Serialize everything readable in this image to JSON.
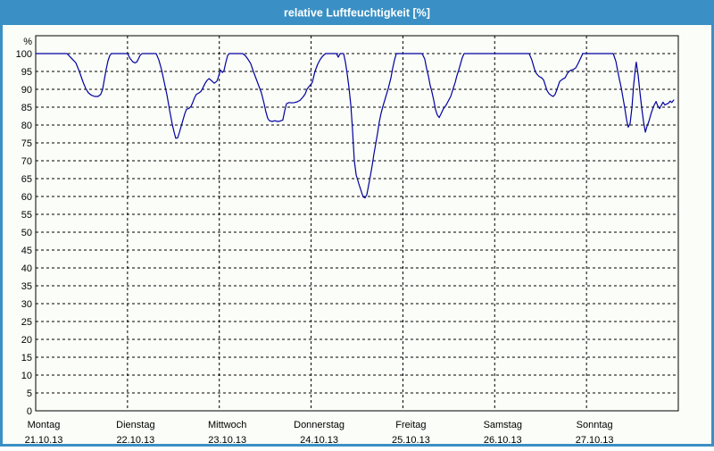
{
  "window": {
    "title": "relative Luftfeuchtigkeit [%]"
  },
  "colors": {
    "title_bar": "#3a90c4",
    "frame_border": "#3a90c4",
    "title_text": "#ffffff",
    "window_bg": "#fbfdf8",
    "grid_line": "#000000",
    "axis_text": "#000000",
    "series_line": "#0000a0"
  },
  "chart_data": {
    "type": "line",
    "title": "relative Luftfeuchtigkeit [%]",
    "ylabel": "%",
    "ylim": [
      0,
      105
    ],
    "grid": "dashed",
    "y_ticks": [
      0,
      5,
      10,
      15,
      20,
      25,
      30,
      35,
      40,
      45,
      50,
      55,
      60,
      65,
      70,
      75,
      80,
      85,
      90,
      95,
      100
    ],
    "x_axis": {
      "unit": "hours",
      "range_hours": [
        0,
        168
      ],
      "day_tick_hours": [
        0,
        24,
        48,
        72,
        96,
        120,
        144
      ],
      "day_labels": [
        {
          "name": "Montag",
          "date": "21.10.13"
        },
        {
          "name": "Dienstag",
          "date": "22.10.13"
        },
        {
          "name": "Mittwoch",
          "date": "23.10.13"
        },
        {
          "name": "Donnerstag",
          "date": "24.10.13"
        },
        {
          "name": "Freitag",
          "date": "25.10.13"
        },
        {
          "name": "Samstag",
          "date": "26.10.13"
        },
        {
          "name": "Sonntag",
          "date": "27.10.13"
        }
      ]
    },
    "series": [
      {
        "name": "relative Luftfeuchtigkeit",
        "color": "#0000a0",
        "points": [
          [
            0,
            100
          ],
          [
            8.2,
            100
          ],
          [
            8.9,
            99.2
          ],
          [
            9.8,
            98.2
          ],
          [
            10.5,
            97.4
          ],
          [
            11.4,
            95
          ],
          [
            12.4,
            92
          ],
          [
            13.1,
            90.2
          ],
          [
            13.8,
            89
          ],
          [
            14.5,
            88.4
          ],
          [
            15.4,
            88
          ],
          [
            16.3,
            88
          ],
          [
            17,
            88.6
          ],
          [
            17.5,
            90
          ],
          [
            18,
            93
          ],
          [
            18.4,
            95.5
          ],
          [
            18.9,
            98
          ],
          [
            19.4,
            99.5
          ],
          [
            19.8,
            100
          ],
          [
            24,
            100
          ],
          [
            24.7,
            98.6
          ],
          [
            25.4,
            97.7
          ],
          [
            25.9,
            97.4
          ],
          [
            26.4,
            97.6
          ],
          [
            26.8,
            98.4
          ],
          [
            27.3,
            99.5
          ],
          [
            27.8,
            100
          ],
          [
            31.5,
            100
          ],
          [
            32.2,
            98.2
          ],
          [
            32.9,
            95.5
          ],
          [
            33.6,
            92
          ],
          [
            34.3,
            88.5
          ],
          [
            35,
            84.2
          ],
          [
            35.7,
            80.2
          ],
          [
            36.2,
            78
          ],
          [
            36.6,
            76.3
          ],
          [
            37.1,
            76.4
          ],
          [
            37.6,
            78
          ],
          [
            38.3,
            80.6
          ],
          [
            39,
            83.2
          ],
          [
            39.4,
            84.4
          ],
          [
            40.1,
            84.7
          ],
          [
            40.6,
            85.2
          ],
          [
            41.1,
            86.4
          ],
          [
            41.5,
            87.6
          ],
          [
            42,
            88.6
          ],
          [
            42.7,
            89
          ],
          [
            43.2,
            89.4
          ],
          [
            43.6,
            90.2
          ],
          [
            44.3,
            91.7
          ],
          [
            44.8,
            92.5
          ],
          [
            45.3,
            93
          ],
          [
            46,
            92.4
          ],
          [
            46.7,
            91.7
          ],
          [
            47.4,
            92.3
          ],
          [
            47.8,
            93.6
          ],
          [
            48.3,
            95.4
          ],
          [
            48.8,
            94.7
          ],
          [
            49.2,
            95.2
          ],
          [
            49.7,
            97.5
          ],
          [
            50.2,
            99.5
          ],
          [
            50.6,
            100
          ],
          [
            54.1,
            100
          ],
          [
            54.8,
            99.4
          ],
          [
            55.5,
            98.4
          ],
          [
            56.2,
            97.2
          ],
          [
            56.9,
            95
          ],
          [
            57.6,
            93
          ],
          [
            58.3,
            91
          ],
          [
            59,
            89
          ],
          [
            59.7,
            86
          ],
          [
            60.2,
            83.6
          ],
          [
            60.7,
            81.8
          ],
          [
            61.1,
            81.2
          ],
          [
            61.8,
            81
          ],
          [
            62.5,
            81.2
          ],
          [
            63.2,
            81
          ],
          [
            63.9,
            81.1
          ],
          [
            64.6,
            81.4
          ],
          [
            65.1,
            84
          ],
          [
            65.6,
            86
          ],
          [
            66.3,
            86.3
          ],
          [
            67,
            86.2
          ],
          [
            67.7,
            86.3
          ],
          [
            68.4,
            86.5
          ],
          [
            69.1,
            86.9
          ],
          [
            69.5,
            87.4
          ],
          [
            70,
            88
          ],
          [
            70.5,
            88.8
          ],
          [
            70.9,
            90
          ],
          [
            71.4,
            90.7
          ],
          [
            71.9,
            91.3
          ],
          [
            72.3,
            91.9
          ],
          [
            73,
            95
          ],
          [
            73.7,
            97
          ],
          [
            74.4,
            98.4
          ],
          [
            75.1,
            99.4
          ],
          [
            75.8,
            100
          ],
          [
            78.6,
            100
          ],
          [
            79.1,
            99
          ],
          [
            79.6,
            100
          ],
          [
            80.5,
            100
          ],
          [
            81,
            97.5
          ],
          [
            81.4,
            94.5
          ],
          [
            81.9,
            90.5
          ],
          [
            82.4,
            85.5
          ],
          [
            82.8,
            79
          ],
          [
            83.3,
            70
          ],
          [
            83.8,
            66
          ],
          [
            84.5,
            63.5
          ],
          [
            85.2,
            61.2
          ],
          [
            85.6,
            59.9
          ],
          [
            86.1,
            59.6
          ],
          [
            86.6,
            60.6
          ],
          [
            87,
            63
          ],
          [
            87.5,
            65.8
          ],
          [
            88,
            68.8
          ],
          [
            88.4,
            71.8
          ],
          [
            88.9,
            74.8
          ],
          [
            89.4,
            77.8
          ],
          [
            89.8,
            80.8
          ],
          [
            90.3,
            83.3
          ],
          [
            90.8,
            85.3
          ],
          [
            91.5,
            87.8
          ],
          [
            92.2,
            90.3
          ],
          [
            92.9,
            93.3
          ],
          [
            93.3,
            95.8
          ],
          [
            93.8,
            98.2
          ],
          [
            94.3,
            100
          ],
          [
            101,
            100
          ],
          [
            101.7,
            98.5
          ],
          [
            102.2,
            95.8
          ],
          [
            102.7,
            93.6
          ],
          [
            103.1,
            91.2
          ],
          [
            103.6,
            89.2
          ],
          [
            104.1,
            86.8
          ],
          [
            104.5,
            84.4
          ],
          [
            105,
            82.8
          ],
          [
            105.5,
            82.1
          ],
          [
            105.9,
            83
          ],
          [
            106.6,
            84.6
          ],
          [
            107.3,
            85.6
          ],
          [
            107.8,
            86.6
          ],
          [
            108.5,
            88
          ],
          [
            109.2,
            90.4
          ],
          [
            109.7,
            92
          ],
          [
            110.1,
            93.8
          ],
          [
            110.6,
            95.4
          ],
          [
            111.1,
            97.2
          ],
          [
            111.5,
            98.8
          ],
          [
            112,
            100
          ],
          [
            129,
            100
          ],
          [
            129.7,
            98.2
          ],
          [
            130.4,
            95.6
          ],
          [
            130.9,
            94.4
          ],
          [
            131.6,
            93.6
          ],
          [
            132.3,
            93.2
          ],
          [
            132.8,
            92.6
          ],
          [
            133.2,
            91.2
          ],
          [
            133.7,
            89.6
          ],
          [
            134.2,
            88.8
          ],
          [
            134.9,
            88.2
          ],
          [
            135.3,
            88
          ],
          [
            135.8,
            88.6
          ],
          [
            136.3,
            90
          ],
          [
            137,
            92.2
          ],
          [
            137.7,
            92.8
          ],
          [
            138.4,
            93.2
          ],
          [
            139.1,
            94.6
          ],
          [
            139.8,
            95.3
          ],
          [
            140.5,
            95.5
          ],
          [
            141.2,
            96
          ],
          [
            141.9,
            97.4
          ],
          [
            142.6,
            99
          ],
          [
            143,
            100
          ],
          [
            151,
            100
          ],
          [
            151.7,
            97.8
          ],
          [
            152.1,
            95.4
          ],
          [
            152.6,
            92.8
          ],
          [
            153.1,
            90.4
          ],
          [
            153.5,
            87.8
          ],
          [
            154,
            84.8
          ],
          [
            154.5,
            81.4
          ],
          [
            154.9,
            79.4
          ],
          [
            155.4,
            80.4
          ],
          [
            155.9,
            85
          ],
          [
            156.3,
            91
          ],
          [
            156.8,
            96
          ],
          [
            157,
            97.6
          ],
          [
            157.5,
            94
          ],
          [
            158,
            89
          ],
          [
            158.4,
            85
          ],
          [
            158.9,
            81
          ],
          [
            159.4,
            78
          ],
          [
            159.8,
            79.6
          ],
          [
            160.3,
            81
          ],
          [
            161,
            83.6
          ],
          [
            161.7,
            85.6
          ],
          [
            162.2,
            86.6
          ],
          [
            162.6,
            85.4
          ],
          [
            163.1,
            84.6
          ],
          [
            163.6,
            85.6
          ],
          [
            164,
            86.4
          ],
          [
            164.5,
            85.6
          ],
          [
            165,
            85.9
          ],
          [
            165.4,
            86.1
          ],
          [
            165.9,
            86.7
          ],
          [
            166.3,
            86.3
          ],
          [
            166.8,
            87
          ]
        ]
      }
    ]
  }
}
